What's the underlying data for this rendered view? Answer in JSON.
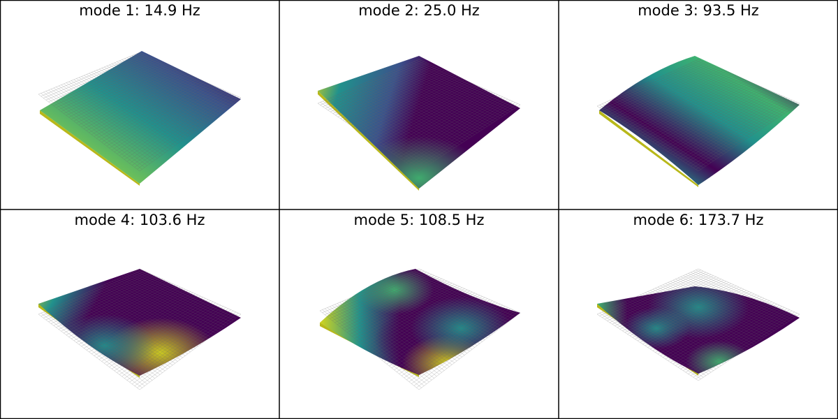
{
  "panels": [
    {
      "title": "mode 1: 14.9 Hz"
    },
    {
      "title": "mode 2: 25.0 Hz"
    },
    {
      "title": "mode 3: 93.5 Hz"
    },
    {
      "title": "mode 4: 103.6 Hz"
    },
    {
      "title": "mode 5: 108.5 Hz"
    },
    {
      "title": "mode 6: 173.7 Hz"
    }
  ]
}
